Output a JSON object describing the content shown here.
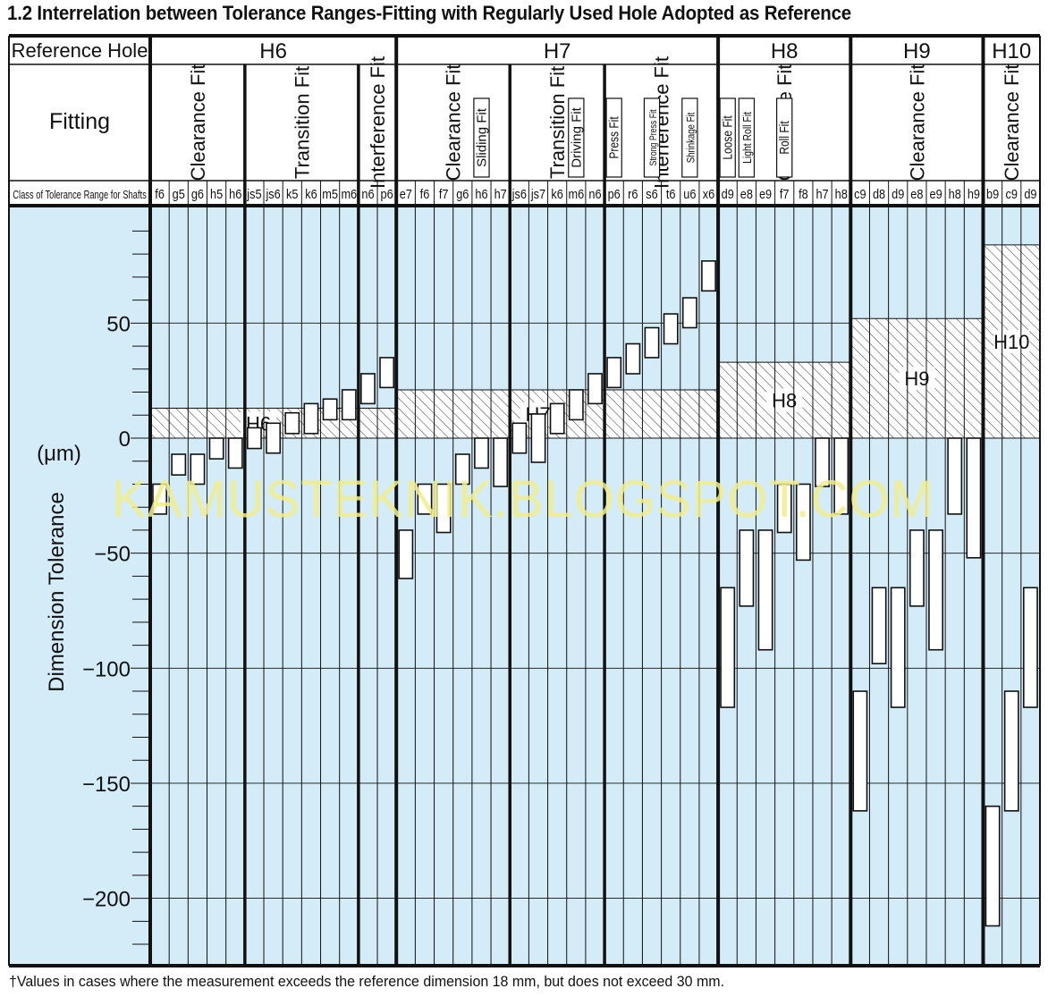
{
  "title": "1.2 Interrelation between Tolerance Ranges-Fitting with Regularly Used Hole Adopted as Reference",
  "footnote": "†Values in cases where the measurement exceeds the reference dimension 18 mm, but does not exceed 30 mm.",
  "watermark": "KAMUSTEKNIK.BLOGSPOT.COM",
  "colors": {
    "plot_bg": "#d4ecf8",
    "bar_fill": "#ffffff",
    "ink": "#111111",
    "watermark": "#f2ee8a"
  },
  "chart_data": {
    "type": "bar",
    "title": "1.2 Interrelation between Tolerance Ranges-Fitting with Regularly Used Hole Adopted as Reference",
    "ylabel": "Dimension Tolerance",
    "yunit": "(μm)",
    "ylim": [
      -230,
      100
    ],
    "yticks": [
      50,
      0,
      -50,
      -100,
      -150,
      -200
    ],
    "ytick_labels": [
      "50",
      "0",
      "−50",
      "−100",
      "−150",
      "−200"
    ],
    "header_labels": {
      "reference_hole": "Reference Hole",
      "fitting": "Fitting",
      "shaft_class": "Class of Tolerance Range for Shafts"
    },
    "holes": [
      {
        "name": "H6",
        "tolerance": [
          0,
          13
        ],
        "fits": [
          {
            "label": "Clearance Fit",
            "shafts": [
              {
                "name": "f6",
                "range": [
                  -33,
                  -20
                ]
              },
              {
                "name": "g5",
                "range": [
                  -16,
                  -7
                ]
              },
              {
                "name": "g6",
                "range": [
                  -20,
                  -7
                ]
              },
              {
                "name": "h5",
                "range": [
                  -9,
                  0
                ]
              },
              {
                "name": "h6",
                "range": [
                  -13,
                  0
                ]
              }
            ]
          },
          {
            "label": "Transition Fit",
            "shafts": [
              {
                "name": "js5",
                "range": [
                  -4.5,
                  4.5
                ]
              },
              {
                "name": "js6",
                "range": [
                  -6.5,
                  6.5
                ]
              },
              {
                "name": "k5",
                "range": [
                  2,
                  11
                ]
              },
              {
                "name": "k6",
                "range": [
                  2,
                  15
                ]
              },
              {
                "name": "m5",
                "range": [
                  8,
                  17
                ]
              },
              {
                "name": "m6",
                "range": [
                  8,
                  21
                ]
              }
            ]
          },
          {
            "label": "Interference Fit",
            "shafts": [
              {
                "name": "n6",
                "range": [
                  15,
                  28
                ]
              },
              {
                "name": "p6",
                "range": [
                  22,
                  35
                ]
              }
            ]
          }
        ]
      },
      {
        "name": "H7",
        "tolerance": [
          0,
          21
        ],
        "fits": [
          {
            "label": "Clearance Fit",
            "sub": "Sliding Fit",
            "shafts": [
              {
                "name": "e7",
                "range": [
                  -61,
                  -40
                ]
              },
              {
                "name": "f6",
                "range": [
                  -33,
                  -20
                ]
              },
              {
                "name": "f7",
                "range": [
                  -41,
                  -20
                ]
              },
              {
                "name": "g6",
                "range": [
                  -20,
                  -7
                ]
              },
              {
                "name": "h6",
                "range": [
                  -13,
                  0
                ]
              },
              {
                "name": "h7",
                "range": [
                  -21,
                  0
                ]
              }
            ]
          },
          {
            "label": "Transition Fit",
            "sub": "Driving Fit",
            "shafts": [
              {
                "name": "js6",
                "range": [
                  -6.5,
                  6.5
                ]
              },
              {
                "name": "js7",
                "range": [
                  -10.5,
                  10.5
                ]
              },
              {
                "name": "k6",
                "range": [
                  2,
                  15
                ]
              },
              {
                "name": "m6",
                "range": [
                  8,
                  21
                ]
              },
              {
                "name": "n6",
                "range": [
                  15,
                  28
                ]
              }
            ]
          },
          {
            "label": "Interference Fit",
            "subs": [
              "Press Fit",
              "Strong Press Fit",
              "Shrinkage Fit"
            ],
            "shafts": [
              {
                "name": "p6",
                "range": [
                  22,
                  35
                ]
              },
              {
                "name": "r6",
                "range": [
                  28,
                  41
                ]
              },
              {
                "name": "s6",
                "range": [
                  35,
                  48
                ]
              },
              {
                "name": "t6",
                "range": [
                  41,
                  54
                ]
              },
              {
                "name": "u6",
                "range": [
                  48,
                  61
                ]
              },
              {
                "name": "x6",
                "range": [
                  64,
                  77
                ]
              }
            ]
          }
        ]
      },
      {
        "name": "H8",
        "tolerance": [
          0,
          33
        ],
        "fits": [
          {
            "label": "Clearance Fit",
            "subs": [
              "Loose Fit",
              "Light Roll Fit",
              "Roll Fit"
            ],
            "shafts": [
              {
                "name": "d9",
                "range": [
                  -117,
                  -65
                ]
              },
              {
                "name": "e8",
                "range": [
                  -73,
                  -40
                ]
              },
              {
                "name": "e9",
                "range": [
                  -92,
                  -40
                ]
              },
              {
                "name": "f7",
                "range": [
                  -41,
                  -20
                ]
              },
              {
                "name": "f8",
                "range": [
                  -53,
                  -20
                ]
              },
              {
                "name": "h7",
                "range": [
                  -21,
                  0
                ]
              },
              {
                "name": "h8",
                "range": [
                  -33,
                  0
                ]
              }
            ]
          }
        ]
      },
      {
        "name": "H9",
        "tolerance": [
          0,
          52
        ],
        "fits": [
          {
            "label": "Clearance Fit",
            "shafts": [
              {
                "name": "c9",
                "range": [
                  -162,
                  -110
                ]
              },
              {
                "name": "d8",
                "range": [
                  -98,
                  -65
                ]
              },
              {
                "name": "d9",
                "range": [
                  -117,
                  -65
                ]
              },
              {
                "name": "e8",
                "range": [
                  -73,
                  -40
                ]
              },
              {
                "name": "e9",
                "range": [
                  -92,
                  -40
                ]
              },
              {
                "name": "h8",
                "range": [
                  -33,
                  0
                ]
              },
              {
                "name": "h9",
                "range": [
                  -52,
                  0
                ]
              }
            ]
          }
        ]
      },
      {
        "name": "H10",
        "tolerance": [
          0,
          84
        ],
        "fits": [
          {
            "label": "Clearance Fit",
            "shafts": [
              {
                "name": "b9",
                "range": [
                  -212,
                  -160
                ]
              },
              {
                "name": "c9",
                "range": [
                  -162,
                  -110
                ]
              },
              {
                "name": "d9",
                "range": [
                  -117,
                  -65
                ]
              }
            ]
          }
        ]
      }
    ]
  }
}
